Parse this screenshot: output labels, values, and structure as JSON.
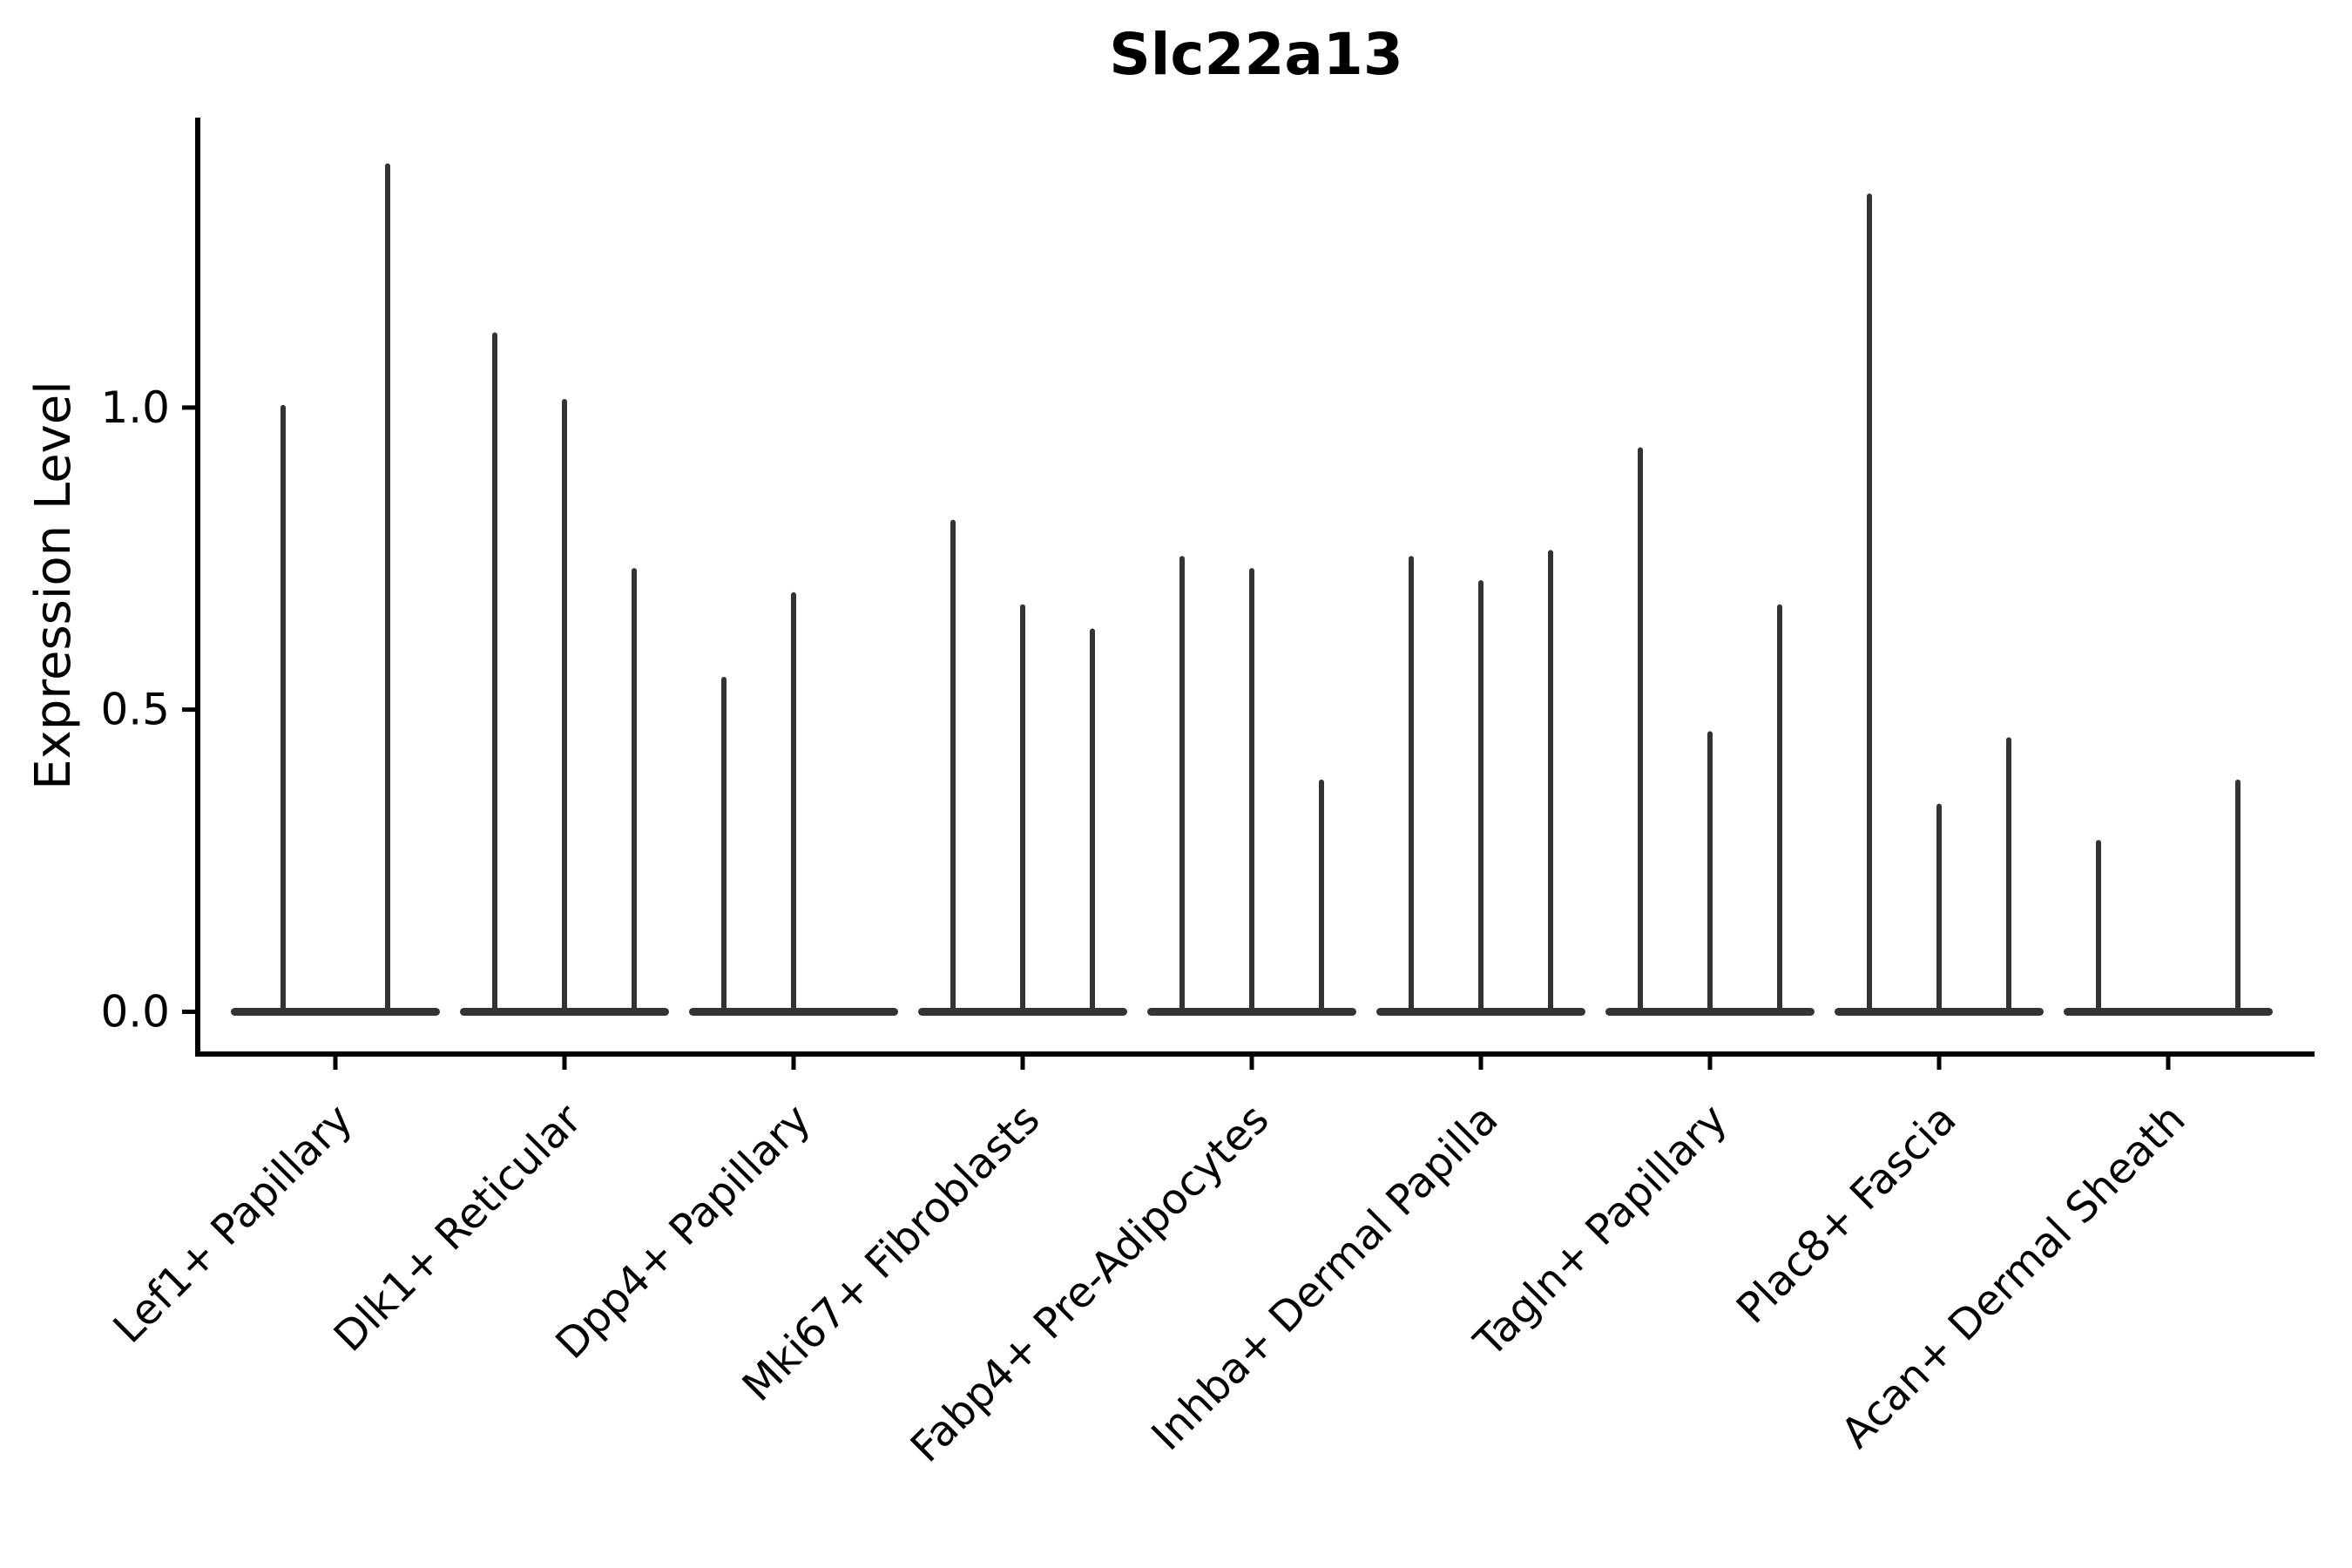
{
  "chart_data": {
    "type": "violin",
    "title": "Slc22a13",
    "ylabel": "Expression Level",
    "xlabel": "",
    "grid": false,
    "legend": null,
    "background": "#ffffff",
    "violin_color": "#333333",
    "axis_color": "#000000",
    "ylim": [
      -0.07,
      1.48
    ],
    "yticks": [
      {
        "value": 0.0,
        "label": "0.0"
      },
      {
        "value": 0.5,
        "label": "0.5"
      },
      {
        "value": 1.0,
        "label": "1.0"
      }
    ],
    "note": "Sparse single-cell expression violins: each category shows flattened violin bodies at 0 with thin density spikes; violin_max lists the top of each spike (max expression) per sub-violin, 0 = no visible spike",
    "groups": [
      {
        "label": "Lef1+ Papillary",
        "violin_max": [
          1.0,
          1.4
        ]
      },
      {
        "label": "Dlk1+ Reticular",
        "violin_max": [
          1.12,
          1.01,
          0.73
        ]
      },
      {
        "label": "Dpp4+ Papillary",
        "violin_max": [
          0.55,
          0.69,
          0.0
        ]
      },
      {
        "label": "Mki67+ Fibroblasts",
        "violin_max": [
          0.81,
          0.67,
          0.63
        ]
      },
      {
        "label": "Fabp4+ Pre-Adipocytes",
        "violin_max": [
          0.75,
          0.73,
          0.38
        ]
      },
      {
        "label": "Inhba+ Dermal Papilla",
        "violin_max": [
          0.75,
          0.71,
          0.76
        ]
      },
      {
        "label": "Tagln+ Papillary",
        "violin_max": [
          0.93,
          0.46,
          0.67
        ]
      },
      {
        "label": "Plac8+ Fascia",
        "violin_max": [
          1.35,
          0.34,
          0.45
        ]
      },
      {
        "label": "Acan+ Dermal Sheath",
        "violin_max": [
          0.28,
          0.0,
          0.38
        ]
      }
    ]
  }
}
